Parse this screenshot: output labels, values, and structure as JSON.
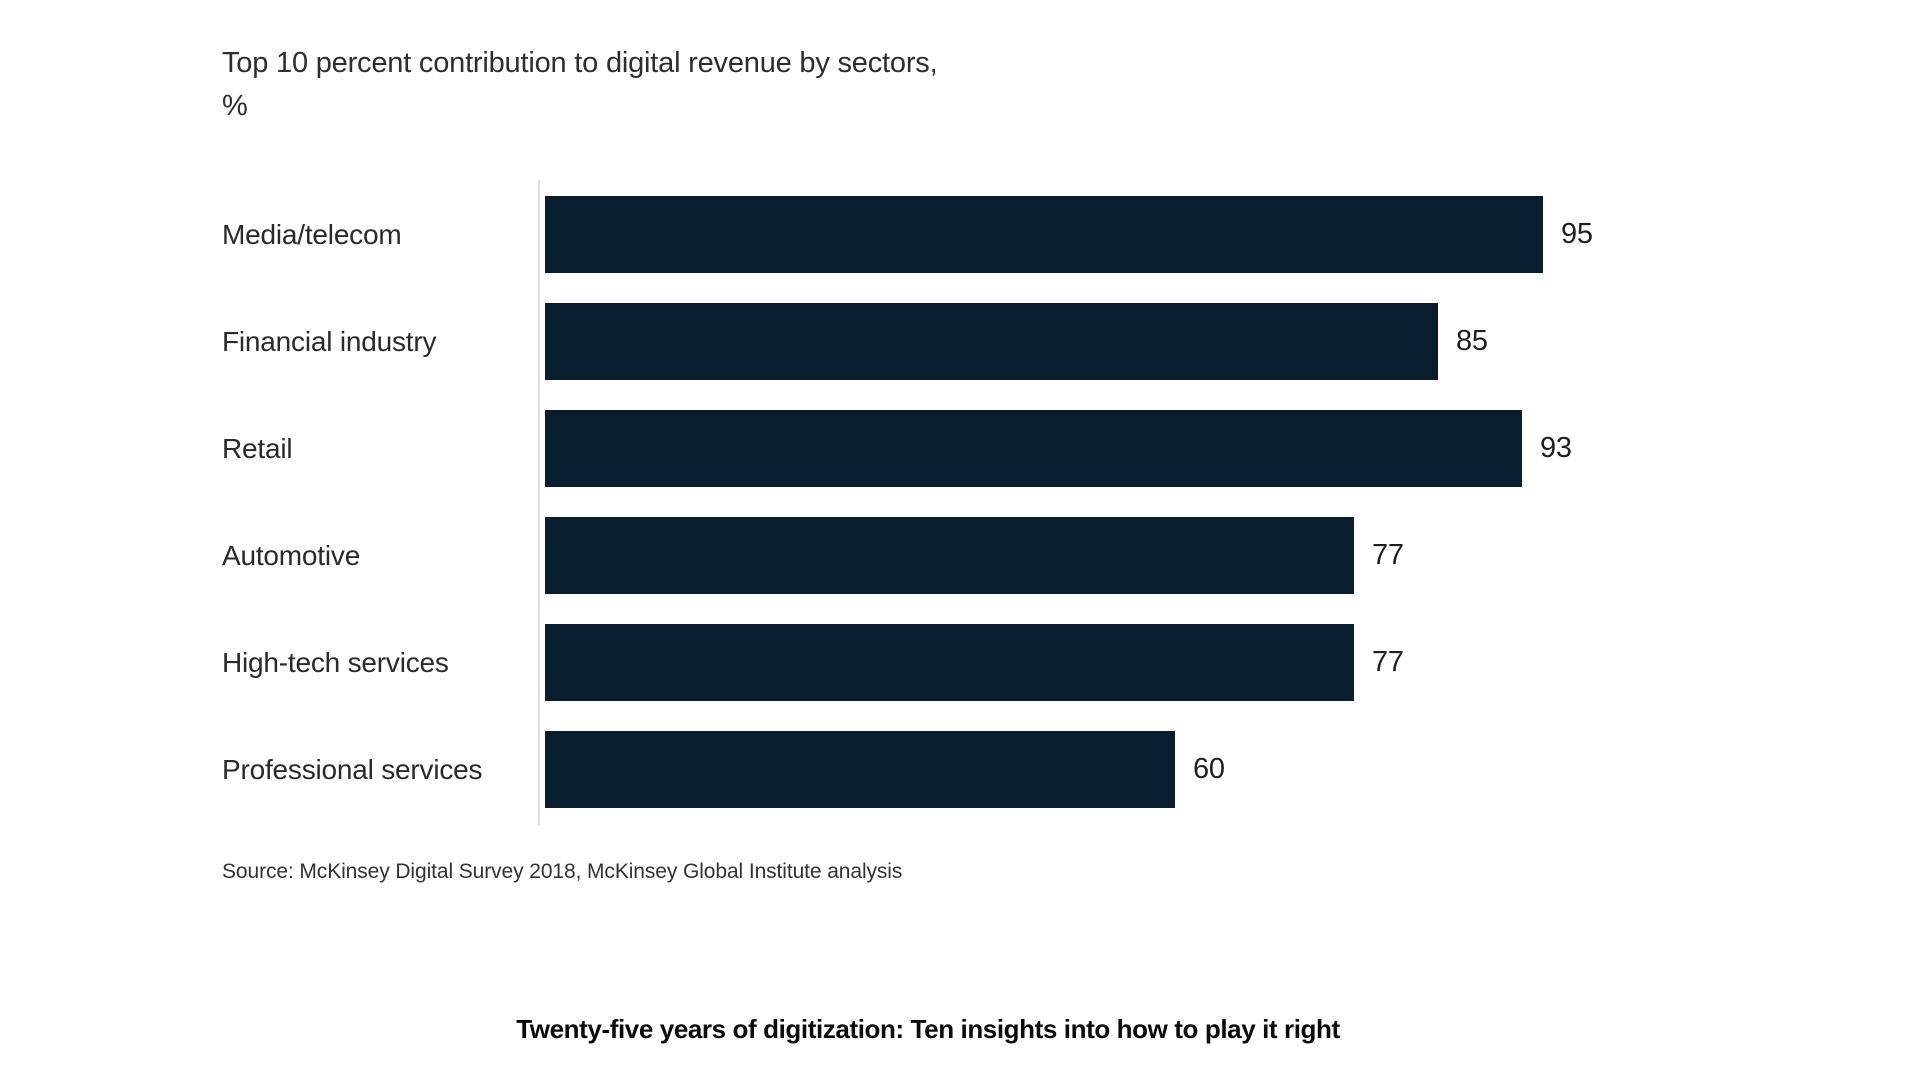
{
  "page": {
    "background_color": "#ffffff"
  },
  "chart_data": {
    "type": "bar",
    "orientation": "horizontal",
    "title": "Top 10 percent contribution to digital revenue by sectors,",
    "unit_label": "%",
    "categories": [
      "Media/telecom",
      "Financial industry",
      "Retail",
      "Automotive",
      "High-tech services",
      "Professional services"
    ],
    "values": [
      95,
      85,
      93,
      77,
      77,
      60
    ],
    "xlim": [
      0,
      100
    ],
    "bar_color": "#081d2e",
    "axis_line_color": "#dedede",
    "grid": false,
    "legend": "none",
    "value_labels": "end-of-bar"
  },
  "source_note": "Source: McKinsey Digital Survey 2018, McKinsey Global Institute analysis",
  "footer_caption": "Twenty-five years of digitization: Ten insights into how to play it right"
}
